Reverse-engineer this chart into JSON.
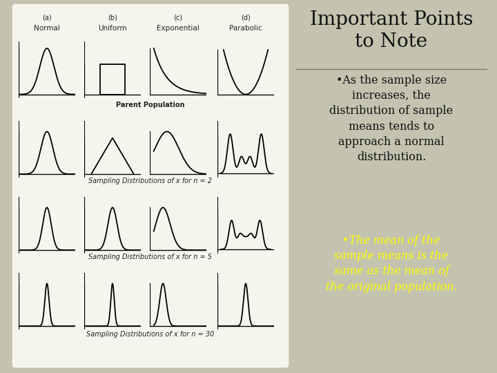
{
  "bg_color": "#c3c3b0",
  "left_panel_bg": "#f5f5ee",
  "right_panel_bg": "#ccccba",
  "title_text": "Important Points\nto Note",
  "title_fontsize": 20,
  "title_color": "#111111",
  "bullet1_text": "•As the sample size\nincreases, the\ndistribution of sample\nmeans tends to\napproach a normal\ndistribution.",
  "bullet2_text": "•The mean of the\nsample means is the\nsame as the mean of\nthe original population.",
  "bullet1_color": "#111111",
  "bullet2_color": "#ffff00",
  "bullet_fontsize": 11.5,
  "col_labels_top": [
    "(a)",
    "(b)",
    "(c)",
    "(d)"
  ],
  "col_labels_bot": [
    "Normal",
    "Uniform",
    "Exponential",
    "Parabolic"
  ],
  "row_labels": [
    "Parent Population",
    "Sampling Distributions of x for n = 2",
    "Sampling Distributions of x for n = 5",
    "Sampling Distributions of x for n = 30"
  ]
}
